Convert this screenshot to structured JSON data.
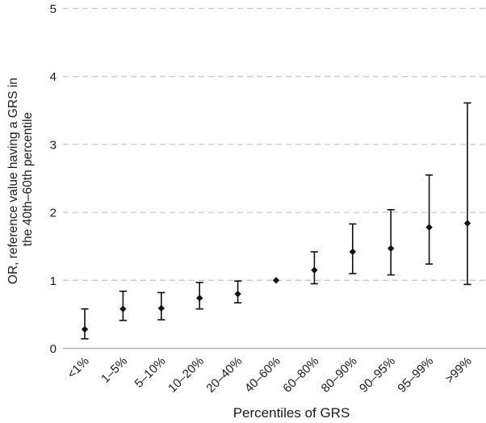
{
  "chart_data": {
    "type": "scatter",
    "subtype": "forest-errorbar",
    "title": "",
    "xlabel": "Percentiles of GRS",
    "ylabel": "OR, reference value having a GRS in the 40th–60th percentile",
    "ylabel_lines": [
      "OR, reference value having a GRS in",
      "the 40th–60th percentile"
    ],
    "categories": [
      "<1%",
      "1–5%",
      "5–10%",
      "10–20%",
      "20–40%",
      "40–60%",
      "60–80%",
      "80–90%",
      "90–95%",
      "95–99%",
      ">99%"
    ],
    "series": [
      {
        "name": "OR",
        "values": [
          0.28,
          0.58,
          0.59,
          0.74,
          0.8,
          1.0,
          1.15,
          1.42,
          1.47,
          1.78,
          1.84
        ],
        "ci_low": [
          0.14,
          0.41,
          0.42,
          0.58,
          0.67,
          null,
          0.95,
          1.1,
          1.08,
          1.24,
          0.94
        ],
        "ci_high": [
          0.58,
          0.84,
          0.82,
          0.97,
          0.99,
          null,
          1.42,
          1.83,
          2.04,
          2.55,
          3.61
        ]
      }
    ],
    "yticks": [
      0,
      1,
      2,
      3,
      4,
      5
    ],
    "ylim": [
      0,
      5
    ],
    "grid": "horizontal-dashed",
    "legend": "none",
    "reference_category": "40–60%",
    "marker": "diamond",
    "colors": {
      "marker": "#111111",
      "errorbar": "#111111",
      "gridline": "#c9c9c9",
      "axisline": "#b0b0b0",
      "text": "#1a1a1a"
    }
  }
}
